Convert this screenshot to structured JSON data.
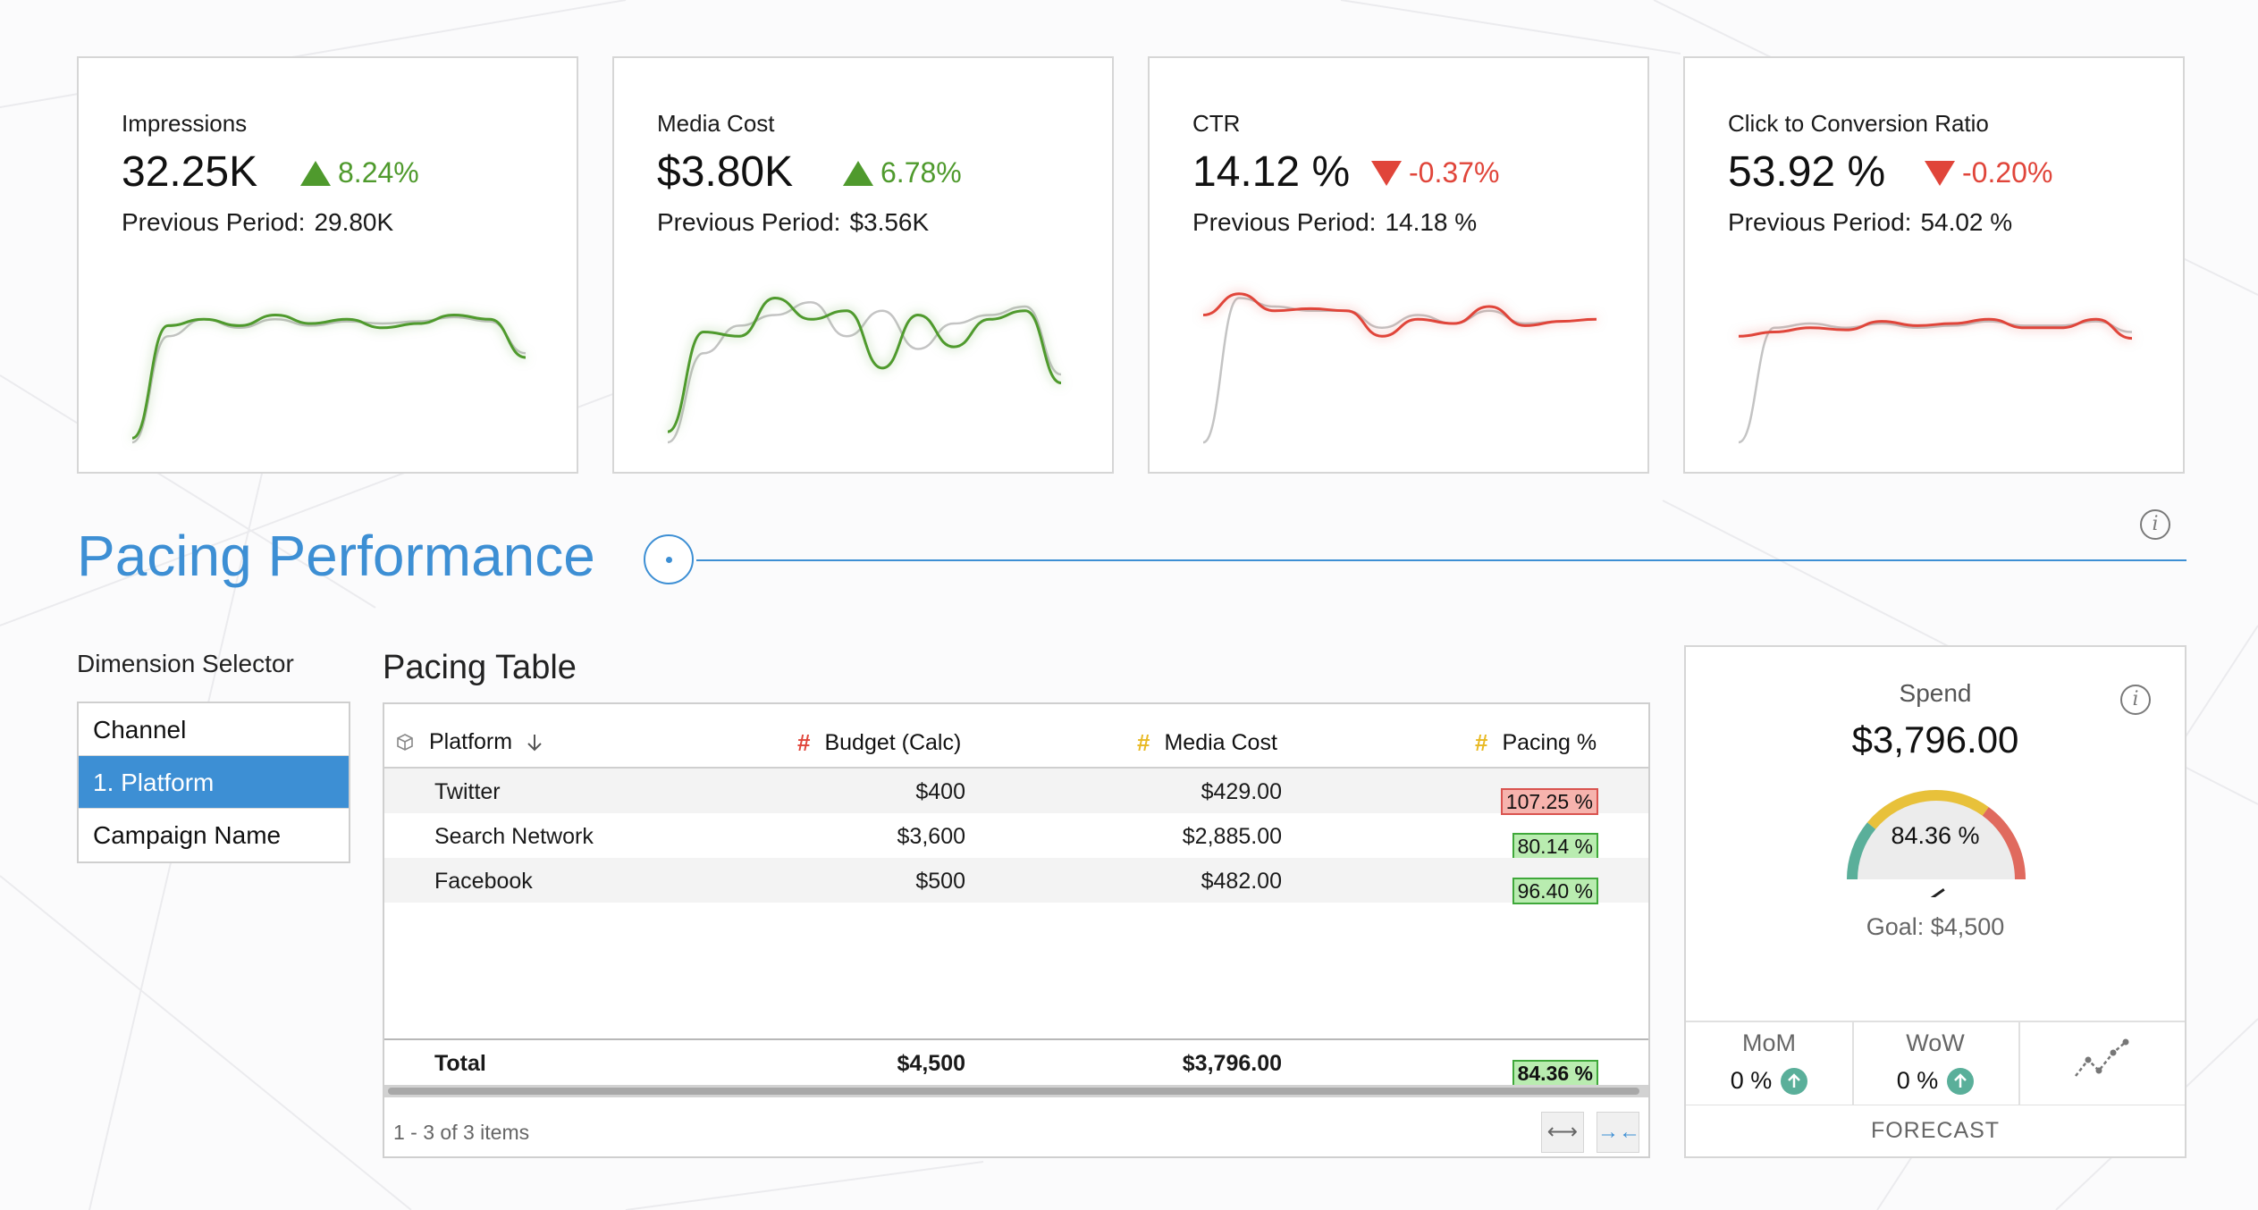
{
  "kpis": [
    {
      "title": "Impressions",
      "value": "32.25K",
      "change": "8.24%",
      "direction": "up",
      "previous_label": "Previous Period:",
      "previous_value": "29.80K",
      "color": "#4f9a2d",
      "spark_current": [
        2,
        55,
        58,
        55,
        60,
        56,
        58,
        54,
        56,
        60,
        58,
        40
      ],
      "spark_previous": [
        0,
        50,
        58,
        54,
        58,
        55,
        57,
        56,
        57,
        59,
        57,
        42
      ]
    },
    {
      "title": "Media Cost",
      "value": "$3.80K",
      "change": "6.78%",
      "direction": "up",
      "previous_label": "Previous Period:",
      "previous_value": "$3.56K",
      "color": "#4f9a2d",
      "spark_current": [
        5,
        52,
        50,
        68,
        58,
        62,
        35,
        60,
        45,
        58,
        62,
        28
      ],
      "spark_previous": [
        0,
        42,
        55,
        60,
        66,
        50,
        62,
        44,
        56,
        60,
        64,
        32
      ]
    },
    {
      "title": "CTR",
      "value": "14.12 %",
      "change": "-0.37%",
      "direction": "down",
      "previous_label": "Previous Period:",
      "previous_value": "14.18 %",
      "color": "#e0453a",
      "spark_current": [
        60,
        70,
        62,
        63,
        62,
        50,
        58,
        56,
        64,
        55,
        57,
        58
      ],
      "spark_previous": [
        0,
        68,
        64,
        62,
        62,
        54,
        60,
        56,
        62,
        56,
        57,
        58
      ]
    },
    {
      "title": "Click to Conversion Ratio",
      "value": "53.92 %",
      "change": "-0.20%",
      "direction": "down",
      "previous_label": "Previous Period:",
      "previous_value": "54.02 %",
      "color": "#e0453a",
      "spark_current": [
        50,
        52,
        54,
        53,
        57,
        55,
        56,
        58,
        54,
        54,
        58,
        49
      ],
      "spark_previous": [
        0,
        54,
        56,
        54,
        56,
        54,
        55,
        57,
        55,
        55,
        57,
        52
      ]
    }
  ],
  "section": {
    "title": "Pacing Performance"
  },
  "dimension_selector": {
    "label": "Dimension Selector",
    "items": [
      "Channel",
      "1. Platform",
      "Campaign Name"
    ],
    "selected_index": 1
  },
  "pacing_table": {
    "title": "Pacing Table",
    "columns": [
      "Platform",
      "Budget (Calc)",
      "Media Cost",
      "Pacing %"
    ],
    "hash_colors": {
      "budget": "#e0453a",
      "media_cost": "#e8b923",
      "pacing": "#e8b923"
    },
    "rows": [
      {
        "platform": "Twitter",
        "budget": "$400",
        "media_cost": "$429.00",
        "pacing": "107.25 %",
        "status": "red"
      },
      {
        "platform": "Search Network",
        "budget": "$3,600",
        "media_cost": "$2,885.00",
        "pacing": "80.14 %",
        "status": "green"
      },
      {
        "platform": "Facebook",
        "budget": "$500",
        "media_cost": "$482.00",
        "pacing": "96.40 %",
        "status": "green"
      }
    ],
    "total": {
      "label": "Total",
      "budget": "$4,500",
      "media_cost": "$3,796.00",
      "pacing": "84.36 %"
    },
    "footer": "1 - 3 of 3 items"
  },
  "spend": {
    "label": "Spend",
    "value": "$3,796.00",
    "gauge_percent_text": "84.36 %",
    "gauge_fraction": 0.8436,
    "goal": "Goal: $4,500",
    "mom_label": "MoM",
    "mom_value": "0 %",
    "wow_label": "WoW",
    "wow_value": "0 %",
    "forecast_label": "FORECAST"
  }
}
